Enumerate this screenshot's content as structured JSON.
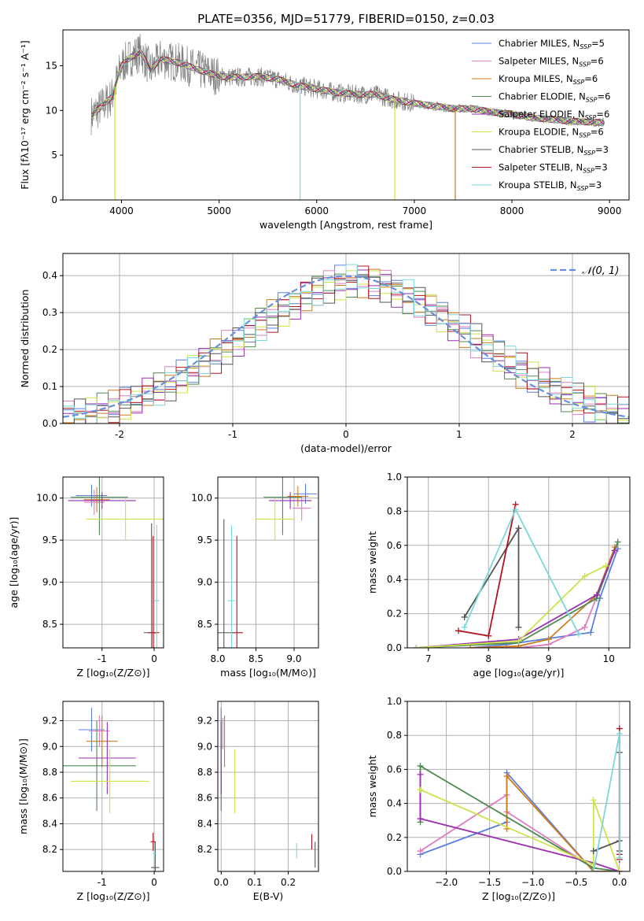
{
  "figure_title": "PLATE=0356, MJD=51779, FIBERID=0150, z=0.03",
  "colors": {
    "Chabrier MILES": "#5b7fdc",
    "Salpeter MILES": "#e07cc0",
    "Kroupa MILES": "#d07a1c",
    "Chabrier ELODIE": "#4f8a52",
    "Salpeter ELODIE": "#9a2fb0",
    "Kroupa ELODIE": "#cde34a",
    "Chabrier STELIB": "#555555",
    "Salpeter STELIB": "#b0141e",
    "Kroupa STELIB": "#7ad8dc",
    "normal": "#6a8fdc",
    "grid": "#b0b0b0"
  },
  "chart_data": [
    {
      "id": "spectrum",
      "type": "line",
      "xlabel": "wavelength [Angstrom, rest frame]",
      "ylabel": "Flux [fλ10⁻¹⁷ erg cm⁻² s⁻¹ A⁻¹]",
      "xlim": [
        3400,
        9200
      ],
      "ylim": [
        0,
        19
      ],
      "xticks": [
        4000,
        5000,
        6000,
        7000,
        8000,
        9000
      ],
      "yticks": [
        0,
        5,
        10,
        15
      ],
      "grid": false,
      "legend_position": "top-right",
      "data_series": {
        "name": "",
        "x": [
          3700,
          3800,
          3900,
          4000,
          4100,
          4200,
          4300,
          4400,
          4500,
          4600,
          4800,
          5000,
          5200,
          5400,
          5600,
          5800,
          6000,
          6200,
          6400,
          6600,
          6800,
          7000,
          7200,
          7400,
          7600,
          7800,
          8000,
          8200,
          8400,
          8600,
          8800,
          9000
        ],
        "y": [
          9.5,
          10.5,
          11.5,
          15,
          16,
          16.5,
          14.5,
          15.8,
          15.5,
          15.3,
          14.5,
          13.8,
          13.7,
          13.8,
          13.5,
          12.8,
          12.4,
          12,
          11.8,
          11.8,
          11.2,
          10.8,
          10.5,
          10.2,
          10.2,
          9.8,
          9.6,
          9.2,
          9,
          8.8,
          8.7,
          8.6
        ]
      },
      "series": [
        {
          "name": "Chabrier MILES, N_SSP=5",
          "label_main": "Chabrier MILES, N",
          "label_sub": "SSP",
          "label_tail": "=5"
        },
        {
          "name": "Salpeter MILES, N_SSP=6",
          "label_main": "Salpeter MILES, N",
          "label_sub": "SSP",
          "label_tail": "=6"
        },
        {
          "name": "Kroupa MILES, N_SSP=6",
          "label_main": "Kroupa MILES, N",
          "label_sub": "SSP",
          "label_tail": "=6"
        },
        {
          "name": "Chabrier ELODIE, N_SSP=6",
          "label_main": "Chabrier ELODIE, N",
          "label_sub": "SSP",
          "label_tail": "=6"
        },
        {
          "name": "Salpeter ELODIE, N_SSP=6",
          "label_main": "Salpeter ELODIE, N",
          "label_sub": "SSP",
          "label_tail": "=6"
        },
        {
          "name": "Kroupa ELODIE, N_SSP=6",
          "label_main": "Kroupa ELODIE, N",
          "label_sub": "SSP",
          "label_tail": "=6"
        },
        {
          "name": "Chabrier STELIB, N_SSP=3",
          "label_main": "Chabrier STELIB, N",
          "label_sub": "SSP",
          "label_tail": "=3"
        },
        {
          "name": "Salpeter STELIB, N_SSP=3",
          "label_main": "Salpeter STELIB, N",
          "label_sub": "SSP",
          "label_tail": "=3"
        },
        {
          "name": "Kroupa STELIB, N_SSP=3",
          "label_main": "Kroupa STELIB, N",
          "label_sub": "SSP",
          "label_tail": "=3"
        }
      ]
    },
    {
      "id": "residuals",
      "type": "line",
      "xlabel": "(data-model)/error",
      "ylabel": "Normed distribution",
      "xlim": [
        -2.5,
        2.5
      ],
      "ylim": [
        0,
        0.46
      ],
      "xticks": [
        -2,
        -1,
        0,
        1,
        2
      ],
      "yticks": [
        0.0,
        0.1,
        0.2,
        0.3,
        0.4
      ],
      "grid": true,
      "legend_position": "top-right",
      "legend": "𝒩(0, 1)",
      "bins": [
        -2.5,
        -2.4,
        -2.3,
        -2.2,
        -2.1,
        -2.0,
        -1.9,
        -1.8,
        -1.7,
        -1.6,
        -1.5,
        -1.4,
        -1.3,
        -1.2,
        -1.1,
        -1.0,
        -0.9,
        -0.8,
        -0.7,
        -0.6,
        -0.5,
        -0.4,
        -0.3,
        -0.2,
        -0.1,
        0.0,
        0.1,
        0.2,
        0.3,
        0.4,
        0.5,
        0.6,
        0.7,
        0.8,
        0.9,
        1.0,
        1.1,
        1.2,
        1.3,
        1.4,
        1.5,
        1.6,
        1.7,
        1.8,
        1.9,
        2.0,
        2.1,
        2.2,
        2.3,
        2.4,
        2.5
      ],
      "base_density": [
        0.017,
        0.022,
        0.028,
        0.035,
        0.044,
        0.054,
        0.065,
        0.078,
        0.092,
        0.108,
        0.125,
        0.144,
        0.163,
        0.184,
        0.205,
        0.226,
        0.249,
        0.271,
        0.291,
        0.31,
        0.328,
        0.345,
        0.36,
        0.372,
        0.381,
        0.386,
        0.386,
        0.381,
        0.372,
        0.36,
        0.345,
        0.328,
        0.31,
        0.291,
        0.271,
        0.249,
        0.226,
        0.205,
        0.184,
        0.163,
        0.144,
        0.125,
        0.108,
        0.092,
        0.078,
        0.065,
        0.054,
        0.044,
        0.035,
        0.028
      ],
      "normal_curve": {
        "mean": 0,
        "sigma": 1
      }
    },
    {
      "id": "age-vs-Z",
      "type": "scatter",
      "xlabel": "Z [log₁₀(Z/Z⊙)]",
      "ylabel": "age  [log₁₀(age/yr)]",
      "xlim": [
        -1.75,
        0.18
      ],
      "ylim": [
        8.22,
        10.25
      ],
      "xticks": [
        -1,
        0
      ],
      "yticks": [
        8.5,
        9.0,
        9.5,
        10.0
      ],
      "grid": true,
      "points": [
        {
          "series": "Chabrier MILES",
          "x": -1.2,
          "y": 10.03,
          "xerr": 0.3,
          "yerr": 0.13
        },
        {
          "series": "Salpeter MILES",
          "x": -1.15,
          "y": 9.95,
          "xerr": 0.2,
          "yerr": 0.15
        },
        {
          "series": "Kroupa MILES",
          "x": -1.1,
          "y": 9.98,
          "xerr": 0.25,
          "yerr": 0.15
        },
        {
          "series": "Chabrier ELODIE",
          "x": -1.05,
          "y": 10.01,
          "xerr": 0.55,
          "yerr": 0.45
        },
        {
          "series": "Salpeter ELODIE",
          "x": -1.0,
          "y": 9.97,
          "xerr": 0.65,
          "yerr": 0.1
        },
        {
          "series": "Kroupa ELODIE",
          "x": -0.55,
          "y": 9.75,
          "xerr": 0.75,
          "yerr": 0.25
        },
        {
          "series": "Chabrier STELIB",
          "x": -0.05,
          "y": 8.4,
          "xerr": 0.15,
          "yerr": 1.3
        },
        {
          "series": "Salpeter STELIB",
          "x": -0.02,
          "y": 8.4,
          "xerr": 0.1,
          "yerr": 1.15
        },
        {
          "series": "Kroupa STELIB",
          "x": 0.05,
          "y": 8.78,
          "xerr": 0.05,
          "yerr": 0.9
        }
      ]
    },
    {
      "id": "age-vs-mass",
      "type": "scatter",
      "xlabel": "mass [log₁₀(M/M⊙)]",
      "ylabel": "",
      "xlim": [
        8.0,
        9.32
      ],
      "ylim": [
        8.22,
        10.25
      ],
      "xticks": [
        8.0,
        8.5,
        9.0
      ],
      "yticks": [
        8.5,
        9.0,
        9.5,
        10.0
      ],
      "grid": true,
      "points": [
        {
          "series": "Chabrier MILES",
          "x": 9.15,
          "y": 10.05,
          "xerr": 0.15,
          "yerr": 0.12
        },
        {
          "series": "Salpeter MILES",
          "x": 9.1,
          "y": 9.88,
          "xerr": 0.12,
          "yerr": 0.15
        },
        {
          "series": "Kroupa MILES",
          "x": 9.05,
          "y": 10.02,
          "xerr": 0.14,
          "yerr": 0.12
        },
        {
          "series": "Chabrier ELODIE",
          "x": 8.85,
          "y": 10.01,
          "xerr": 0.25,
          "yerr": 0.45
        },
        {
          "series": "Salpeter ELODIE",
          "x": 8.95,
          "y": 9.97,
          "xerr": 0.28,
          "yerr": 0.1
        },
        {
          "series": "Kroupa ELODIE",
          "x": 8.75,
          "y": 9.75,
          "xerr": 0.25,
          "yerr": 0.25
        },
        {
          "series": "Chabrier STELIB",
          "x": 8.08,
          "y": 8.4,
          "xerr": 0.12,
          "yerr": 1.35
        },
        {
          "series": "Salpeter STELIB",
          "x": 8.25,
          "y": 8.4,
          "xerr": 0.08,
          "yerr": 1.15
        },
        {
          "series": "Kroupa STELIB",
          "x": 8.18,
          "y": 8.78,
          "xerr": 0.05,
          "yerr": 0.9
        }
      ]
    },
    {
      "id": "weight-vs-age",
      "type": "line",
      "xlabel": "age  [log₁₀(age/yr)]",
      "ylabel": "mass weight",
      "xlim": [
        6.65,
        10.35
      ],
      "ylim": [
        0,
        1.0
      ],
      "xticks": [
        7,
        8,
        9,
        10
      ],
      "yticks": [
        0.0,
        0.2,
        0.4,
        0.6,
        0.8,
        1.0
      ],
      "grid": true,
      "series": [
        {
          "name": "Chabrier MILES",
          "x": [
            7.7,
            8.3,
            9.7,
            9.85,
            10.15
          ],
          "y": [
            0.0,
            0.02,
            0.09,
            0.29,
            0.58
          ]
        },
        {
          "name": "Salpeter MILES",
          "x": [
            7.7,
            8.5,
            9.0,
            9.6,
            10.1
          ],
          "y": [
            0.0,
            0.0,
            0.02,
            0.12,
            0.57
          ]
        },
        {
          "name": "Kroupa MILES",
          "x": [
            7.7,
            8.5,
            9.0,
            9.8,
            10.1
          ],
          "y": [
            0.0,
            0.01,
            0.05,
            0.31,
            0.59
          ]
        },
        {
          "name": "Chabrier ELODIE",
          "x": [
            6.8,
            8.5,
            9.8,
            10.15
          ],
          "y": [
            0.0,
            0.03,
            0.29,
            0.62
          ]
        },
        {
          "name": "Salpeter ELODIE",
          "x": [
            6.8,
            8.5,
            9.8,
            10.1
          ],
          "y": [
            0.0,
            0.05,
            0.31,
            0.57
          ]
        },
        {
          "name": "Kroupa ELODIE",
          "x": [
            6.8,
            8.5,
            9.6,
            9.95
          ],
          "y": [
            0.0,
            0.04,
            0.42,
            0.48
          ]
        },
        {
          "name": "Chabrier STELIB",
          "x": [
            7.6,
            8.5,
            8.5
          ],
          "y": [
            0.18,
            0.7,
            0.12
          ]
        },
        {
          "name": "Salpeter STELIB",
          "x": [
            7.5,
            8.0,
            8.45
          ],
          "y": [
            0.1,
            0.07,
            0.84
          ]
        },
        {
          "name": "Kroupa STELIB",
          "x": [
            7.6,
            8.45,
            9.5
          ],
          "y": [
            0.12,
            0.81,
            0.08
          ]
        }
      ]
    },
    {
      "id": "mass-vs-Z",
      "type": "scatter",
      "xlabel": "Z [log₁₀(Z/Z⊙)]",
      "ylabel": "mass [log₁₀(M/M⊙)]",
      "xlim": [
        -1.75,
        0.18
      ],
      "ylim": [
        8.03,
        9.35
      ],
      "xticks": [
        -1,
        0
      ],
      "yticks": [
        8.2,
        8.4,
        8.6,
        8.8,
        9.0,
        9.2
      ],
      "grid": true,
      "points": [
        {
          "series": "Chabrier MILES",
          "x": -1.2,
          "y": 9.13,
          "xerr": 0.25,
          "yerr": 0.17
        },
        {
          "series": "Salpeter MILES",
          "x": -1.05,
          "y": 9.12,
          "xerr": 0.2,
          "yerr": 0.12
        },
        {
          "series": "Kroupa MILES",
          "x": -1.0,
          "y": 9.04,
          "xerr": 0.3,
          "yerr": 0.2
        },
        {
          "series": "Chabrier ELODIE",
          "x": -1.1,
          "y": 8.85,
          "xerr": 0.75,
          "yerr": 0.35
        },
        {
          "series": "Salpeter ELODIE",
          "x": -0.9,
          "y": 8.91,
          "xerr": 0.55,
          "yerr": 0.28
        },
        {
          "series": "Kroupa ELODIE",
          "x": -0.85,
          "y": 8.73,
          "xerr": 0.75,
          "yerr": 0.25
        },
        {
          "series": "Chabrier STELIB",
          "x": 0.02,
          "y": 8.06,
          "xerr": 0.08,
          "yerr": 0.2
        },
        {
          "series": "Salpeter STELIB",
          "x": -0.02,
          "y": 8.26,
          "xerr": 0.05,
          "yerr": 0.07
        },
        {
          "series": "Kroupa STELIB",
          "x": 0.0,
          "y": 8.17,
          "xerr": 0.03,
          "yerr": 0.05
        }
      ]
    },
    {
      "id": "mass-vs-EBV",
      "type": "scatter",
      "xlabel": "E(B-V)",
      "ylabel": "",
      "xlim": [
        -0.01,
        0.29
      ],
      "ylim": [
        8.03,
        9.35
      ],
      "xticks": [
        0.0,
        0.1,
        0.2
      ],
      "yticks": [
        8.2,
        8.4,
        8.6,
        8.8,
        9.0,
        9.2
      ],
      "grid": true,
      "points": [
        {
          "series": "Chabrier MILES",
          "x": 0.0,
          "y": 9.13,
          "xerr": 0.0,
          "yerr": 0.17
        },
        {
          "series": "Salpeter MILES",
          "x": 0.005,
          "y": 9.1,
          "xerr": 0.0,
          "yerr": 0.12
        },
        {
          "series": "Kroupa MILES",
          "x": 0.01,
          "y": 9.04,
          "xerr": 0.0,
          "yerr": 0.2
        },
        {
          "series": "Chabrier ELODIE",
          "x": 0.0,
          "y": 8.85,
          "xerr": 0.0,
          "yerr": 0.35
        },
        {
          "series": "Salpeter ELODIE",
          "x": 0.0,
          "y": 8.91,
          "xerr": 0.0,
          "yerr": 0.28
        },
        {
          "series": "Kroupa ELODIE",
          "x": 0.04,
          "y": 8.73,
          "xerr": 0.0,
          "yerr": 0.25
        },
        {
          "series": "Chabrier STELIB",
          "x": 0.28,
          "y": 8.16,
          "xerr": 0.0,
          "yerr": 0.1
        },
        {
          "series": "Salpeter STELIB",
          "x": 0.27,
          "y": 8.26,
          "xerr": 0.0,
          "yerr": 0.06
        },
        {
          "series": "Kroupa STELIB",
          "x": 0.225,
          "y": 8.19,
          "xerr": 0.0,
          "yerr": 0.06
        }
      ]
    },
    {
      "id": "weight-vs-Z",
      "type": "line",
      "xlabel": "Z [log₁₀(Z/Z⊙)]",
      "ylabel": "mass weight",
      "xlim": [
        -2.45,
        0.12
      ],
      "ylim": [
        0,
        1.0
      ],
      "xticks": [
        -2.0,
        -1.5,
        -1.0,
        -0.5,
        0.0
      ],
      "yticks": [
        0.0,
        0.2,
        0.4,
        0.6,
        0.8,
        1.0
      ],
      "grid": true,
      "series": [
        {
          "name": "Chabrier MILES",
          "x": [
            -2.3,
            -1.3,
            -1.3,
            -0.3,
            0.0
          ],
          "y": [
            0.1,
            0.29,
            0.58,
            0.0,
            0.0
          ]
        },
        {
          "name": "Salpeter MILES",
          "x": [
            -2.3,
            -1.3,
            -1.3,
            -0.3,
            0.0
          ],
          "y": [
            0.12,
            0.45,
            0.35,
            0.02,
            0.0
          ]
        },
        {
          "name": "Kroupa MILES",
          "x": [
            -1.3,
            -1.3,
            -0.3,
            0.0
          ],
          "y": [
            0.25,
            0.56,
            0.0,
            0.0
          ]
        },
        {
          "name": "Chabrier ELODIE",
          "x": [
            -2.3,
            -2.3,
            -0.3,
            0.0
          ],
          "y": [
            0.29,
            0.62,
            0.02,
            0.0
          ]
        },
        {
          "name": "Salpeter ELODIE",
          "x": [
            -2.3,
            -2.3,
            -0.3,
            0.0
          ],
          "y": [
            0.57,
            0.31,
            0.05,
            0.0
          ]
        },
        {
          "name": "Kroupa ELODIE",
          "x": [
            -2.3,
            -0.3,
            -0.3,
            0.0
          ],
          "y": [
            0.48,
            0.04,
            0.42,
            0.0
          ]
        },
        {
          "name": "Chabrier STELIB",
          "x": [
            -0.3,
            0.0,
            0.0,
            0.0
          ],
          "y": [
            0.12,
            0.18,
            0.7,
            0.12
          ]
        },
        {
          "name": "Salpeter STELIB",
          "x": [
            0.0,
            0.0,
            0.0
          ],
          "y": [
            0.07,
            0.84,
            0.1
          ]
        },
        {
          "name": "Kroupa STELIB",
          "x": [
            -0.3,
            0.0,
            0.0
          ],
          "y": [
            0.0,
            0.81,
            0.08
          ]
        }
      ]
    }
  ]
}
